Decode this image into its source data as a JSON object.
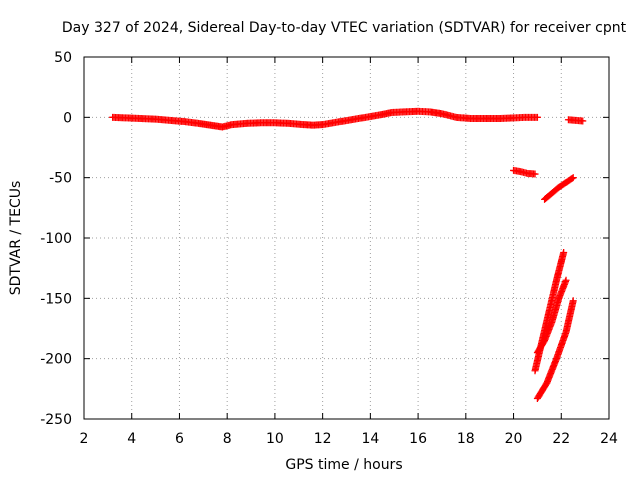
{
  "chart_data": {
    "type": "scatter",
    "title": "Day 327 of 2024, Sidereal Day-to-day VTEC variation (SDTVAR) for receiver cpnt",
    "xlabel": "GPS time / hours",
    "ylabel": "SDTVAR / TECUs",
    "xlim": [
      2,
      24
    ],
    "ylim": [
      -250,
      50
    ],
    "xticks": [
      2,
      4,
      6,
      8,
      10,
      12,
      14,
      16,
      18,
      20,
      22,
      24
    ],
    "yticks": [
      50,
      0,
      -50,
      -100,
      -150,
      -200,
      -250
    ],
    "grid": true,
    "marker": "+",
    "color": "#ff0000",
    "series": [
      {
        "name": "main",
        "points": [
          [
            3.2,
            0
          ],
          [
            3.8,
            -0.5
          ],
          [
            4.4,
            -1
          ],
          [
            5.0,
            -1.5
          ],
          [
            5.6,
            -2.5
          ],
          [
            6.2,
            -3.5
          ],
          [
            6.8,
            -5
          ],
          [
            7.3,
            -6.5
          ],
          [
            7.8,
            -8
          ],
          [
            8.2,
            -6
          ],
          [
            8.8,
            -5
          ],
          [
            9.4,
            -4.5
          ],
          [
            10.0,
            -4.5
          ],
          [
            10.6,
            -5
          ],
          [
            11.2,
            -6
          ],
          [
            11.6,
            -6.5
          ],
          [
            12.0,
            -6
          ],
          [
            12.6,
            -4
          ],
          [
            13.2,
            -2
          ],
          [
            13.8,
            0
          ],
          [
            14.4,
            2
          ],
          [
            14.9,
            4
          ],
          [
            15.4,
            4.5
          ],
          [
            16.0,
            5
          ],
          [
            16.5,
            4.5
          ],
          [
            17.0,
            3
          ],
          [
            17.6,
            0
          ],
          [
            18.2,
            -1
          ],
          [
            18.8,
            -1
          ],
          [
            19.4,
            -1
          ],
          [
            20.0,
            -0.5
          ],
          [
            20.5,
            0
          ],
          [
            21.0,
            0
          ]
        ]
      },
      {
        "name": "seg1",
        "points": [
          [
            20.0,
            -44
          ],
          [
            20.3,
            -45
          ],
          [
            20.6,
            -46.5
          ],
          [
            20.9,
            -47
          ]
        ]
      },
      {
        "name": "seg2",
        "points": [
          [
            21.3,
            -68
          ],
          [
            21.6,
            -63
          ],
          [
            21.9,
            -58
          ],
          [
            22.2,
            -54
          ],
          [
            22.5,
            -50
          ]
        ]
      },
      {
        "name": "seg3",
        "points": [
          [
            22.3,
            -2
          ],
          [
            22.6,
            -2.5
          ],
          [
            22.9,
            -3
          ]
        ]
      },
      {
        "name": "seg4",
        "points": [
          [
            20.9,
            -210
          ],
          [
            21.2,
            -185
          ],
          [
            21.5,
            -160
          ],
          [
            21.8,
            -135
          ],
          [
            22.1,
            -112
          ]
        ]
      },
      {
        "name": "seg5",
        "points": [
          [
            21.0,
            -195
          ],
          [
            21.3,
            -185
          ],
          [
            21.6,
            -170
          ],
          [
            21.9,
            -150
          ],
          [
            22.2,
            -135
          ]
        ]
      },
      {
        "name": "seg6",
        "points": [
          [
            21.0,
            -233
          ],
          [
            21.4,
            -220
          ],
          [
            21.8,
            -200
          ],
          [
            22.2,
            -178
          ],
          [
            22.5,
            -152
          ]
        ]
      }
    ]
  }
}
